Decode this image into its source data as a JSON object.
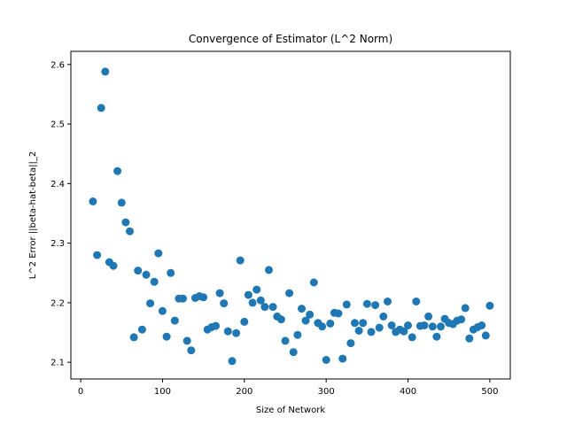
{
  "chart_data": {
    "type": "scatter",
    "title": "Convergence of Estimator (L^2 Norm)",
    "xlabel": "Size of Network",
    "ylabel": "L^2 Error ||beta-hat-beta||_2",
    "xlim": [
      -12,
      525
    ],
    "ylim": [
      2.072,
      2.622
    ],
    "xticks": [
      0,
      100,
      200,
      300,
      400,
      500
    ],
    "yticks": [
      2.1,
      2.2,
      2.3,
      2.4,
      2.5,
      2.6
    ],
    "xtick_labels": [
      "0",
      "100",
      "200",
      "300",
      "400",
      "500"
    ],
    "ytick_labels": [
      "2.1",
      "2.2",
      "2.3",
      "2.4",
      "2.5",
      "2.6"
    ],
    "grid": false,
    "marker_color": "#1f77b4",
    "points": [
      [
        15,
        2.37
      ],
      [
        20,
        2.28
      ],
      [
        25,
        2.527
      ],
      [
        30,
        2.588
      ],
      [
        35,
        2.268
      ],
      [
        40,
        2.262
      ],
      [
        45,
        2.421
      ],
      [
        50,
        2.368
      ],
      [
        55,
        2.335
      ],
      [
        60,
        2.32
      ],
      [
        65,
        2.142
      ],
      [
        70,
        2.254
      ],
      [
        75,
        2.155
      ],
      [
        80,
        2.247
      ],
      [
        85,
        2.199
      ],
      [
        90,
        2.235
      ],
      [
        95,
        2.283
      ],
      [
        100,
        2.186
      ],
      [
        105,
        2.143
      ],
      [
        110,
        2.25
      ],
      [
        115,
        2.17
      ],
      [
        120,
        2.207
      ],
      [
        125,
        2.207
      ],
      [
        130,
        2.136
      ],
      [
        135,
        2.12
      ],
      [
        140,
        2.208
      ],
      [
        145,
        2.211
      ],
      [
        150,
        2.209
      ],
      [
        155,
        2.155
      ],
      [
        160,
        2.159
      ],
      [
        165,
        2.161
      ],
      [
        170,
        2.216
      ],
      [
        175,
        2.199
      ],
      [
        180,
        2.152
      ],
      [
        185,
        2.102
      ],
      [
        190,
        2.149
      ],
      [
        195,
        2.271
      ],
      [
        200,
        2.168
      ],
      [
        205,
        2.213
      ],
      [
        210,
        2.2
      ],
      [
        215,
        2.222
      ],
      [
        220,
        2.204
      ],
      [
        225,
        2.193
      ],
      [
        230,
        2.255
      ],
      [
        235,
        2.193
      ],
      [
        240,
        2.177
      ],
      [
        245,
        2.172
      ],
      [
        250,
        2.136
      ],
      [
        255,
        2.216
      ],
      [
        260,
        2.117
      ],
      [
        265,
        2.146
      ],
      [
        270,
        2.19
      ],
      [
        275,
        2.17
      ],
      [
        280,
        2.18
      ],
      [
        285,
        2.234
      ],
      [
        290,
        2.166
      ],
      [
        295,
        2.16
      ],
      [
        300,
        2.104
      ],
      [
        305,
        2.165
      ],
      [
        310,
        2.183
      ],
      [
        315,
        2.182
      ],
      [
        320,
        2.106
      ],
      [
        325,
        2.197
      ],
      [
        330,
        2.132
      ],
      [
        335,
        2.166
      ],
      [
        340,
        2.153
      ],
      [
        345,
        2.166
      ],
      [
        350,
        2.198
      ],
      [
        355,
        2.151
      ],
      [
        360,
        2.196
      ],
      [
        365,
        2.158
      ],
      [
        370,
        2.177
      ],
      [
        375,
        2.202
      ],
      [
        380,
        2.162
      ],
      [
        385,
        2.151
      ],
      [
        390,
        2.155
      ],
      [
        395,
        2.152
      ],
      [
        400,
        2.162
      ],
      [
        405,
        2.142
      ],
      [
        410,
        2.202
      ],
      [
        415,
        2.161
      ],
      [
        420,
        2.162
      ],
      [
        425,
        2.177
      ],
      [
        430,
        2.16
      ],
      [
        435,
        2.143
      ],
      [
        440,
        2.16
      ],
      [
        445,
        2.173
      ],
      [
        450,
        2.166
      ],
      [
        455,
        2.164
      ],
      [
        460,
        2.17
      ],
      [
        465,
        2.172
      ],
      [
        470,
        2.191
      ],
      [
        475,
        2.14
      ],
      [
        480,
        2.155
      ],
      [
        485,
        2.159
      ],
      [
        490,
        2.162
      ],
      [
        495,
        2.145
      ],
      [
        500,
        2.195
      ]
    ]
  }
}
